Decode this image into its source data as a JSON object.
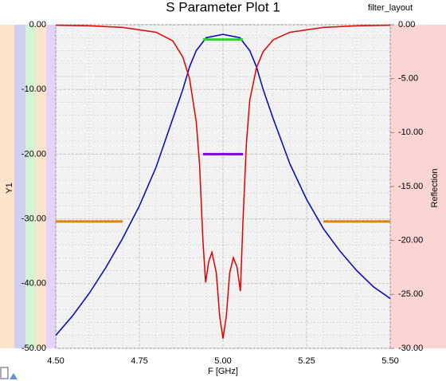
{
  "chart_data": {
    "type": "line",
    "title": "S Parameter Plot 1",
    "subtitle": "filter_layout",
    "x_label": "F [GHz]",
    "y_label": "Y1",
    "y2_label": "Reflection",
    "xlim": [
      4.5,
      5.5
    ],
    "xticks": [
      {
        "value": 4.5,
        "label": "4.50"
      },
      {
        "value": 4.75,
        "label": "4.75"
      },
      {
        "value": 5.0,
        "label": "5.00"
      },
      {
        "value": 5.25,
        "label": "5.25"
      },
      {
        "value": 5.5,
        "label": "5.50"
      }
    ],
    "ylim": [
      -50,
      0
    ],
    "yticks": [
      {
        "value": 0,
        "label": "0.00"
      },
      {
        "value": -10,
        "label": "-10.00"
      },
      {
        "value": -20,
        "label": "-20.00"
      },
      {
        "value": -30,
        "label": "-30.00"
      },
      {
        "value": -40,
        "label": "-40.00"
      },
      {
        "value": -50,
        "label": "-50.00"
      }
    ],
    "y2lim": [
      -30,
      0
    ],
    "y2ticks": [
      {
        "value": 0,
        "label": "0.00"
      },
      {
        "value": -5,
        "label": "-5.00"
      },
      {
        "value": -10,
        "label": "-10.00"
      },
      {
        "value": -15,
        "label": "-15.00"
      },
      {
        "value": -20,
        "label": "-20.00"
      },
      {
        "value": -25,
        "label": "-25.00"
      },
      {
        "value": -30,
        "label": "-30.00"
      }
    ],
    "grid": true,
    "series": [
      {
        "color": "#0000c0",
        "x": [
          4.5,
          4.55,
          4.6,
          4.65,
          4.7,
          4.75,
          4.8,
          4.85,
          4.88,
          4.9,
          4.92,
          4.95,
          5.0,
          5.05,
          5.08,
          5.1,
          5.12,
          5.15,
          5.2,
          5.25,
          5.3,
          5.35,
          5.4,
          5.45,
          5.5
        ],
        "values": [
          -48,
          -45,
          -41.5,
          -37.5,
          -33,
          -28,
          -22,
          -14.5,
          -10,
          -6.5,
          -4,
          -2,
          -1.5,
          -2,
          -4,
          -6.5,
          -10,
          -14.5,
          -21.5,
          -27,
          -31.5,
          -35,
          -38,
          -40.5,
          -42.3
        ]
      },
      {
        "color": "#e00000",
        "axis": "y2",
        "x": [
          4.5,
          4.6,
          4.7,
          4.8,
          4.85,
          4.88,
          4.9,
          4.92,
          4.93,
          4.94,
          4.948,
          4.957,
          4.967,
          4.98,
          4.99,
          5.0,
          5.01,
          5.02,
          5.031,
          5.042,
          5.052,
          5.06,
          5.07,
          5.08,
          5.1,
          5.12,
          5.15,
          5.2,
          5.3,
          5.4,
          5.5
        ],
        "values": [
          -0.05,
          -0.1,
          -0.25,
          -0.7,
          -1.5,
          -3,
          -5,
          -9,
          -13,
          -20,
          -23.9,
          -22,
          -21.1,
          -23,
          -27,
          -29.1,
          -27,
          -23,
          -21.6,
          -22.5,
          -24.7,
          -18,
          -11,
          -7,
          -4,
          -2.5,
          -1.4,
          -0.7,
          -0.25,
          -0.1,
          -0.05
        ]
      }
    ],
    "limit_lines": [
      {
        "color": "#e08000",
        "x": [
          4.5,
          4.7
        ],
        "value": -30.4
      },
      {
        "color": "#e08000",
        "x": [
          5.3,
          5.5
        ],
        "value": -30.4
      },
      {
        "color": "#8000e0",
        "x": [
          4.94,
          5.06
        ],
        "value": -20
      },
      {
        "color": "#30d030",
        "x": [
          4.94,
          5.06
        ],
        "value": -2.3
      }
    ]
  }
}
